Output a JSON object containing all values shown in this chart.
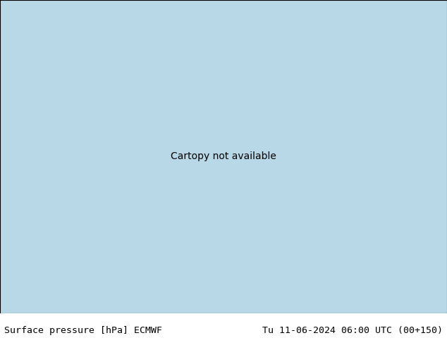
{
  "title_left": "Surface pressure [hPa] ECMWF",
  "title_right": "Tu 11-06-2024 06:00 UTC (00+150)",
  "bg_color": "#ffffff",
  "bottom_bar_color": "#ffffff",
  "label_fontsize": 9.5,
  "label_color": "#000000",
  "figsize": [
    6.34,
    4.9
  ],
  "dpi": 100,
  "map_extent": [
    35,
    150,
    5,
    75
  ],
  "isobar_color_blue": "#0000dd",
  "isobar_color_black": "#000000",
  "isobar_color_red": "#dd0000",
  "isobar_lw": 0.9,
  "red_fill_alpha": 0.55,
  "red_fill_color": "#ff2020"
}
